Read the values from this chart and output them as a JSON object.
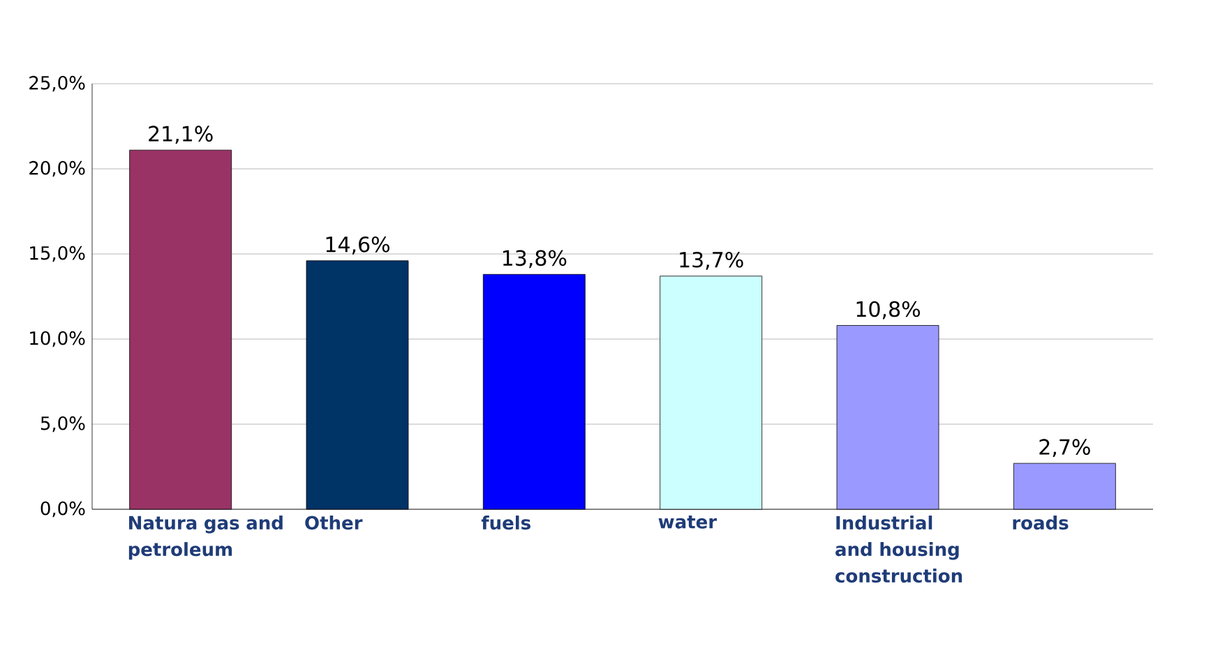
{
  "chart_data": {
    "type": "bar",
    "categories": [
      "Natura gas and petroleum",
      "Other",
      "fuels",
      "water",
      "Industrial and housing construction",
      "roads"
    ],
    "values": [
      21.1,
      14.6,
      13.8,
      13.7,
      10.8,
      2.7
    ],
    "value_labels": [
      "21,1%",
      "14,6%",
      "13,8%",
      "13,7%",
      "10,8%",
      "2,7%"
    ],
    "colors": [
      "#993366",
      "#003366",
      "#0000ff",
      "#ccffff",
      "#9999ff",
      "#9999ff"
    ],
    "ylim": [
      0,
      25
    ],
    "yticks": [
      {
        "value": 0,
        "label": "0,0%"
      },
      {
        "value": 5,
        "label": "5,0%"
      },
      {
        "value": 10,
        "label": "10,0%"
      },
      {
        "value": 15,
        "label": "15,0%"
      },
      {
        "value": 20,
        "label": "20,0%"
      },
      {
        "value": 25,
        "label": "25,0%"
      }
    ],
    "grid": true
  }
}
